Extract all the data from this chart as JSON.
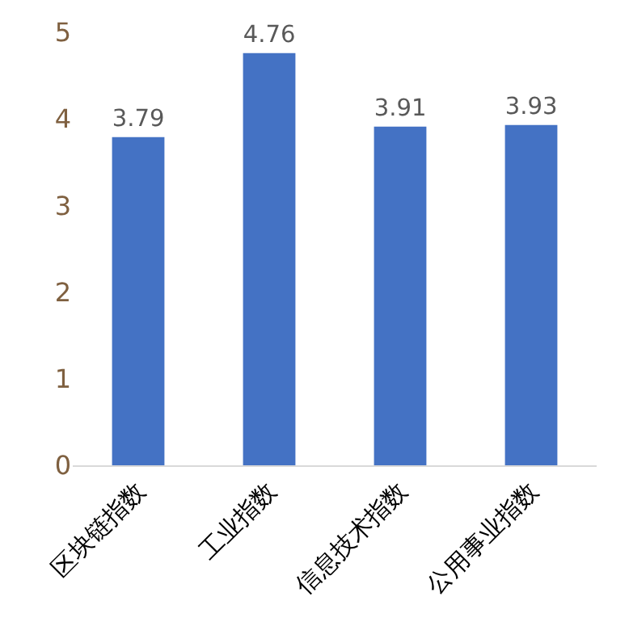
{
  "chart_data": {
    "type": "bar",
    "categories": [
      "区块链指数",
      "工业指数",
      "信息技术指数",
      "公用事业指数"
    ],
    "values": [
      3.79,
      4.76,
      3.91,
      3.93
    ],
    "color": "#4472c4",
    "ylim": [
      0,
      5
    ],
    "yticks": [
      0,
      1,
      2,
      3,
      4,
      5
    ],
    "grid": false,
    "data_labels": true
  }
}
